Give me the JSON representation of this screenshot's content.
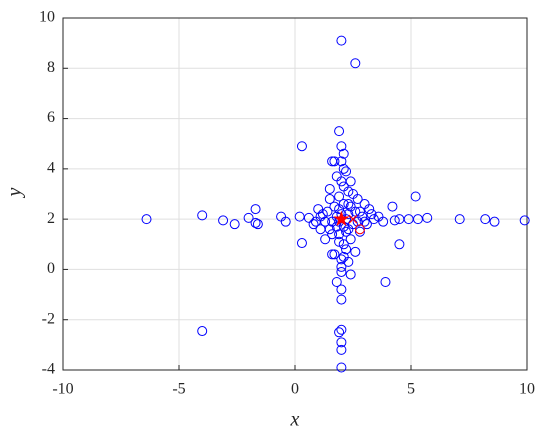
{
  "chart_data": {
    "type": "scatter",
    "xlabel": "x",
    "ylabel": "y",
    "xlim": [
      -10,
      10
    ],
    "ylim": [
      -4,
      10
    ],
    "xticks": [
      -10,
      -5,
      0,
      5,
      10
    ],
    "yticks": [
      -4,
      -2,
      0,
      2,
      4,
      6,
      8,
      10
    ],
    "grid": true,
    "series": [
      {
        "color": "#0000ff",
        "marker": "o",
        "x": [
          -6.4,
          -4,
          -3.1,
          -2.6,
          -2,
          -1.7,
          -1.7,
          -1.6,
          -0.6,
          -0.4,
          0.2,
          0.3,
          0.3,
          2,
          2.6,
          -4,
          2,
          2,
          2,
          1.9,
          2,
          2,
          2,
          1.8,
          3.9,
          4.5,
          5.2,
          7.1,
          8.2,
          8.6,
          9.9,
          5.7,
          5.3,
          4.9,
          4.5,
          4.3,
          4.2,
          3.8,
          2.6,
          2.3,
          1.6,
          1.3,
          1.1,
          0.9,
          1.7,
          1.9,
          2,
          2.1,
          2,
          1.6,
          2.4,
          2.5,
          2.1,
          1.5,
          3.2,
          3.3,
          3,
          2.7,
          1.7,
          2.2,
          2,
          2.4,
          2.1,
          1.9,
          2.8,
          3.1,
          3.4,
          3.6,
          1.2,
          1.4,
          0.6,
          0.8,
          1,
          1.5,
          1.8,
          2.2,
          2.1,
          1.7,
          2.3,
          1.8,
          2.2,
          2.4,
          1.9,
          2.1,
          1.6,
          2.6,
          2.9,
          1.3,
          1.1,
          2.5,
          2.3,
          1.9,
          2,
          2.2,
          1.8,
          2.1,
          1.9,
          2.4,
          1.5,
          2.7,
          3,
          1.6,
          2.3,
          2,
          2.1,
          1.9,
          2,
          2,
          2.3,
          2.8
        ],
        "y": [
          2,
          2.15,
          1.95,
          1.8,
          2.05,
          2.4,
          1.85,
          1.8,
          2.1,
          1.9,
          2.1,
          1.05,
          4.9,
          9.1,
          8.2,
          -2.45,
          -3.9,
          -3.2,
          -2.9,
          -2.5,
          -2.4,
          -1.2,
          -0.8,
          -0.5,
          -0.5,
          1,
          2.9,
          2,
          2,
          1.9,
          1.95,
          2.05,
          2,
          2,
          2,
          1.95,
          2.5,
          1.9,
          0.7,
          0.3,
          0.6,
          1.2,
          1.6,
          1.9,
          4.3,
          5.5,
          4.9,
          4.6,
          4.3,
          4.3,
          3.5,
          3,
          3.3,
          3.2,
          2.4,
          2.2,
          2.6,
          2.8,
          0.6,
          0.8,
          0.1,
          -0.2,
          0.5,
          1.4,
          1.5,
          1.8,
          2,
          2.1,
          2.2,
          2.3,
          2.05,
          1.8,
          2.4,
          2.8,
          3.7,
          3.9,
          2.6,
          2.5,
          2.2,
          1.7,
          1.5,
          1.2,
          1.1,
          1,
          1.9,
          2.3,
          2.1,
          1.9,
          2.1,
          1.8,
          2.6,
          2.9,
          2.2,
          2,
          2.1,
          1.7,
          2.4,
          2.5,
          1.6,
          1.9,
          1.9,
          1.4,
          3.1,
          3.5,
          4,
          1.9,
          0.4,
          -0.1,
          1.6,
          2.3
        ]
      },
      {
        "color": "#ff0000",
        "marker": "o",
        "x": [
          2.8
        ],
        "y": [
          1.6
        ]
      },
      {
        "color": "#ff0000",
        "marker": "x",
        "x": [
          2.5
        ],
        "y": [
          2
        ]
      },
      {
        "color": "#ff0000",
        "marker": "*",
        "x": [
          2
        ],
        "y": [
          2
        ]
      }
    ]
  }
}
